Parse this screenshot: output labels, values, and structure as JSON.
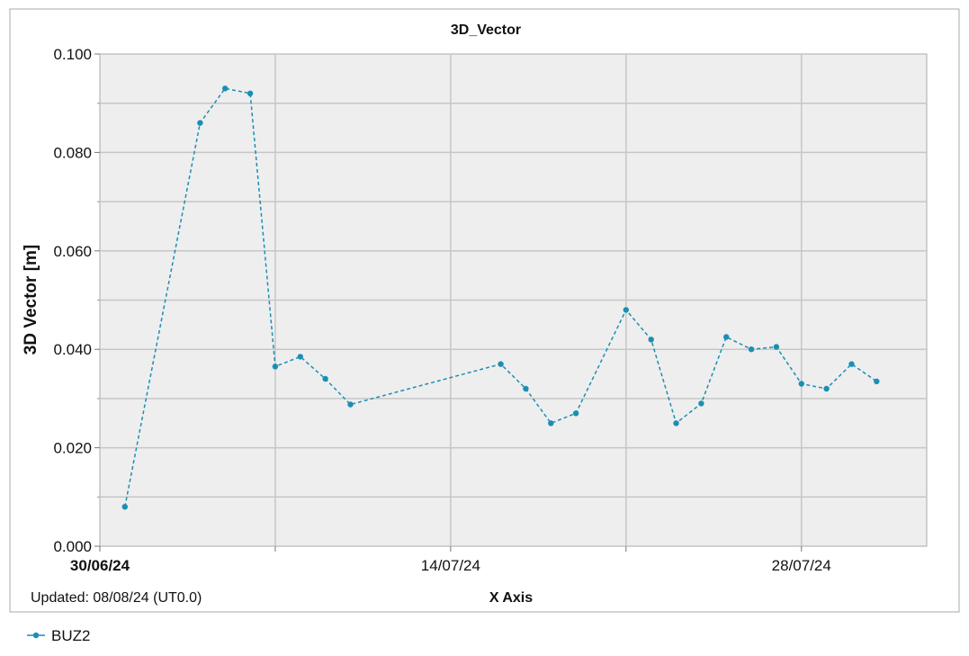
{
  "chart_data": {
    "type": "line",
    "title": "3D_Vector",
    "xlabel": "X Axis",
    "ylabel": "3D Vector [m]",
    "footnote": "Updated: 08/08/24 (UT0.0)",
    "xlim": [
      "2024-06-30",
      "2024-08-02"
    ],
    "ylim": [
      0,
      0.1
    ],
    "y_ticks": [
      "0.000",
      "0.020",
      "0.040",
      "0.060",
      "0.080",
      "0.100"
    ],
    "x_tick_labels": [
      {
        "date": "2024-06-30",
        "label": "30/06/24"
      },
      {
        "date": "2024-07-14",
        "label": "14/07/24"
      },
      {
        "date": "2024-07-28",
        "label": "28/07/24"
      }
    ],
    "grid": true,
    "legend_position": "bottom-left",
    "line_color": "#1a8fb3",
    "series": [
      {
        "name": "BUZ2",
        "x": [
          "2024-07-01",
          "2024-07-04",
          "2024-07-05",
          "2024-07-06",
          "2024-07-07",
          "2024-07-08",
          "2024-07-09",
          "2024-07-10",
          "2024-07-16",
          "2024-07-17",
          "2024-07-18",
          "2024-07-19",
          "2024-07-21",
          "2024-07-22",
          "2024-07-23",
          "2024-07-24",
          "2024-07-25",
          "2024-07-26",
          "2024-07-27",
          "2024-07-28",
          "2024-07-29",
          "2024-07-30",
          "2024-07-31"
        ],
        "values": [
          0.008,
          0.086,
          0.093,
          0.092,
          0.0365,
          0.0385,
          0.034,
          0.0288,
          0.037,
          0.032,
          0.025,
          0.027,
          0.048,
          0.042,
          0.025,
          0.029,
          0.0425,
          0.04,
          0.0405,
          0.033,
          0.032,
          0.037,
          0.0335
        ]
      }
    ]
  }
}
